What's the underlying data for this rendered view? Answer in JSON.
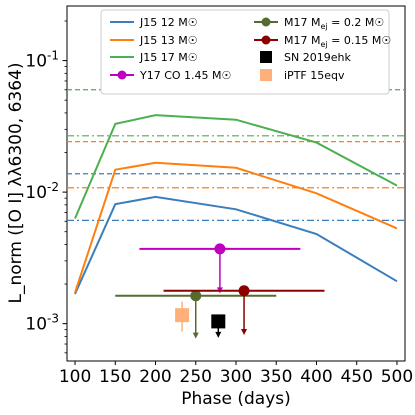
{
  "chart_data": {
    "type": "line",
    "yscale": "log",
    "xlabel": "Phase (days)",
    "ylabel": "L_norm ([O I] λλ6300, 6364)",
    "xlim": [
      90,
      510
    ],
    "ylim": [
      0.00052,
      0.26
    ],
    "xticks": [
      100,
      150,
      200,
      250,
      300,
      350,
      400,
      450,
      500
    ],
    "yticks": [
      0.001,
      0.01,
      0.1
    ],
    "ytick_labels": [
      "10^-3",
      "10^-2",
      "10^-1"
    ],
    "legend_position": "top-right",
    "colors": {
      "j15_12": "#3b7ebd",
      "j15_13": "#ff7f0e",
      "j15_17": "#4caf50",
      "y17": "#c000c0",
      "m17": "#556b2f",
      "m17b": "#8b0000",
      "sn2019ehk": "#000000",
      "iptf15eqv": "#ffb07a"
    },
    "series": [
      {
        "name": "J15 12 M☉",
        "x": [
          100,
          150,
          200,
          300,
          400,
          500
        ],
        "y": [
          0.00168,
          0.0081,
          0.0092,
          0.0074,
          0.0048,
          0.0021
        ]
      },
      {
        "name": "J15 13 M☉",
        "x": [
          100,
          150,
          200,
          300,
          400,
          500
        ],
        "y": [
          0.00172,
          0.0148,
          0.0167,
          0.0153,
          0.0098,
          0.0053
        ]
      },
      {
        "name": "J15 17 M☉",
        "x": [
          100,
          150,
          200,
          300,
          400,
          500
        ],
        "y": [
          0.0063,
          0.033,
          0.0385,
          0.0355,
          0.0238,
          0.0112
        ]
      }
    ],
    "reference_lines": [
      {
        "series": "J15 12 M☉",
        "style": "dashed",
        "y": 0.0138
      },
      {
        "series": "J15 12 M☉",
        "style": "dashdot",
        "y": 0.0061
      },
      {
        "series": "J15 13 M☉",
        "style": "dashed",
        "y": 0.0242
      },
      {
        "series": "J15 13 M☉",
        "style": "dashdot",
        "y": 0.0108
      },
      {
        "series": "J15 17 M☉",
        "style": "dashed",
        "y": 0.06
      },
      {
        "series": "J15 17 M☉",
        "style": "dashdot",
        "y": 0.0268
      }
    ],
    "points": [
      {
        "name": "Y17 CO 1.45 M☉",
        "marker": "circle",
        "x": 280,
        "y": 0.0037,
        "xerr": [
          180,
          380
        ],
        "upper_limit_to": 0.0017
      },
      {
        "name": "M17 M_ej = 0.2 M☉",
        "marker": "circle",
        "x": 250,
        "y": 0.00163,
        "xerr": [
          150,
          350
        ],
        "upper_limit_to": 0.00077
      },
      {
        "name": "M17 M_ej = 0.15 M☉",
        "marker": "circle",
        "x": 310,
        "y": 0.00178,
        "xerr": [
          210,
          410
        ],
        "upper_limit_to": 0.00082
      },
      {
        "name": "SN 2019ehk",
        "marker": "square",
        "x": 278,
        "y": 0.00104,
        "yerr_down": 0.00078
      },
      {
        "name": "iPTF 15eqv",
        "marker": "square",
        "x": 233,
        "y": 0.00116,
        "yerr": [
          0.00087,
          0.00147
        ]
      }
    ],
    "legend": {
      "left": [
        "J15 12 M☉",
        "J15 13 M☉",
        "J15 17 M☉",
        "Y17 CO 1.45 M☉"
      ],
      "right": [
        "M17 M_ej = 0.2 M☉",
        "M17 M_ej = 0.15 M☉",
        "SN 2019ehk",
        "iPTF 15eqv"
      ]
    }
  }
}
